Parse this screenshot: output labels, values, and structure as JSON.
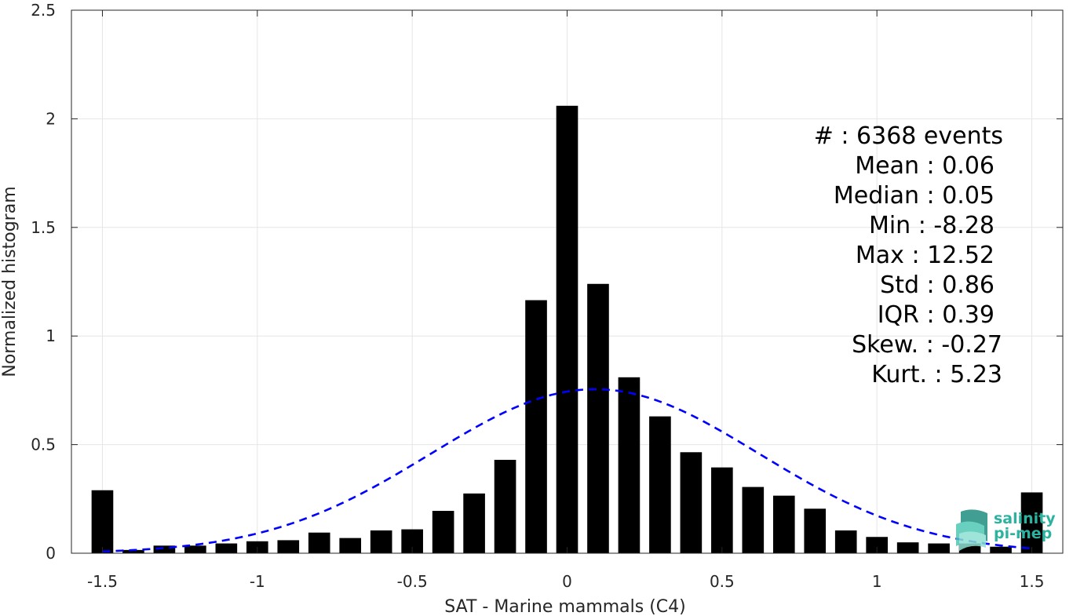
{
  "chart_data": {
    "type": "bar",
    "xlabel": "SAT - Marine mammals (C4)",
    "ylabel": "Normalized histogram",
    "xlim": [
      -1.6,
      1.6
    ],
    "ylim": [
      0,
      2.5
    ],
    "x_ticks": [
      -1.5,
      -1,
      -0.5,
      0,
      0.5,
      1,
      1.5
    ],
    "x_tick_labels": [
      "-1.5",
      "-1",
      "-0.5",
      "0",
      "0.5",
      "1",
      "1.5"
    ],
    "y_ticks": [
      0,
      0.5,
      1,
      1.5,
      2,
      2.5
    ],
    "y_tick_labels": [
      "0",
      "0.5",
      "1",
      "1.5",
      "2",
      "2.5"
    ],
    "grid": true,
    "bar_width": 0.07,
    "bins_x": [
      -1.5,
      -1.4,
      -1.3,
      -1.2,
      -1.1,
      -1.0,
      -0.9,
      -0.8,
      -0.7,
      -0.6,
      -0.5,
      -0.4,
      -0.3,
      -0.2,
      -0.1,
      0.0,
      0.1,
      0.2,
      0.3,
      0.4,
      0.5,
      0.6,
      0.7,
      0.8,
      0.9,
      1.0,
      1.1,
      1.2,
      1.3,
      1.4,
      1.5
    ],
    "values": [
      0.29,
      0.015,
      0.035,
      0.035,
      0.045,
      0.055,
      0.06,
      0.095,
      0.07,
      0.105,
      0.11,
      0.195,
      0.275,
      0.43,
      1.165,
      2.06,
      1.24,
      0.81,
      0.63,
      0.465,
      0.395,
      0.305,
      0.265,
      0.205,
      0.105,
      0.075,
      0.05,
      0.045,
      0.045,
      0.03,
      0.28
    ],
    "bar_color": "#000000",
    "fit": {
      "type": "normal",
      "mean": 0.09,
      "peak": 0.755,
      "sigma": 0.53,
      "x_range": [
        -1.5,
        1.5
      ],
      "color": "#0000ff",
      "style": "dashed"
    },
    "stats": {
      "count": "#  : 6368 events",
      "mean": "Mean : 0.06",
      "median": "Median : 0.05",
      "min": "Min : -8.28",
      "max": "Max : 12.52",
      "std": "Std : 0.86",
      "iqr": "IQR : 0.39",
      "skew": "Skew. : -0.27",
      "kurt": "Kurt. : 5.23"
    },
    "logo": {
      "line1": "salinity",
      "line2": "pi-mep",
      "color": "#2bb3a0"
    }
  }
}
